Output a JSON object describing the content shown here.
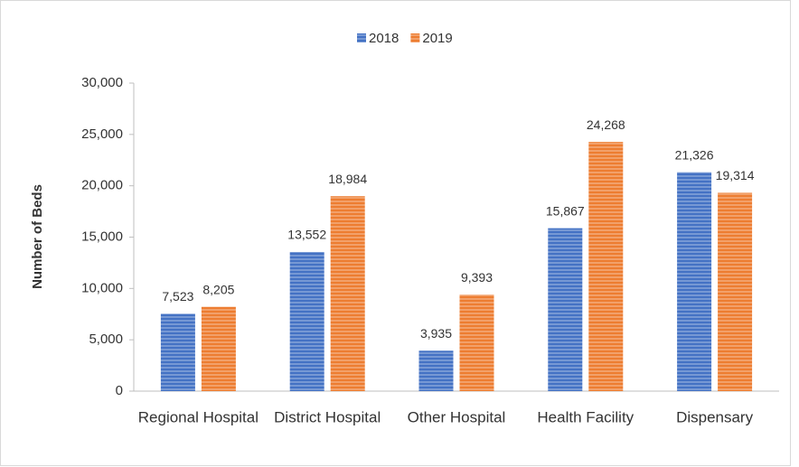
{
  "chart_data": {
    "type": "bar",
    "y_label": "Number of Beds",
    "categories": [
      "Regional Hospital",
      "District Hospital",
      "Other Hospital",
      "Health Facility",
      "Dispensary"
    ],
    "series": [
      {
        "name": "2018",
        "color": "#4472c4",
        "values": [
          7523,
          13552,
          3935,
          15867,
          21326
        ],
        "value_labels": [
          "7,523",
          "13,552",
          "3,935",
          "15,867",
          "21,326"
        ]
      },
      {
        "name": "2019",
        "color": "#ed7d31",
        "values": [
          8205,
          18984,
          9393,
          24268,
          19314
        ],
        "value_labels": [
          "8,205",
          "18,984",
          "9,393",
          "24,268",
          "19,314"
        ]
      }
    ],
    "ylim": [
      0,
      30000
    ],
    "yticks": [
      0,
      {
        "value": 5000,
        "label": "5,000"
      },
      {
        "value": 10000,
        "label": "10,000"
      },
      {
        "value": 15000,
        "label": "15,000"
      },
      {
        "value": 20000,
        "label": "20,000"
      },
      {
        "value": 25000,
        "label": "25,000"
      },
      {
        "value": 30000,
        "label": "30,000"
      }
    ],
    "legend": "top"
  }
}
